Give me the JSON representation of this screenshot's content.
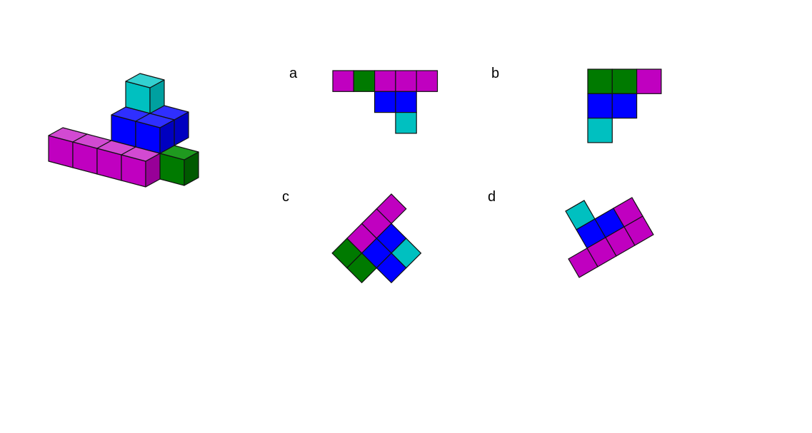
{
  "colors": {
    "magenta": "#c000c0",
    "green": "#007a00",
    "blue": "#0000ff",
    "cyan": "#00c0c0",
    "outline": "#111111",
    "magenta_top": "#d24ad2",
    "magenta_side": "#980098",
    "green_top": "#1f9a1f",
    "green_side": "#005a00",
    "blue_top": "#2f2fff",
    "blue_side": "#0000c0",
    "cyan_top": "#33d0d0",
    "cyan_side": "#00a0a0"
  },
  "options": [
    {
      "label": "a",
      "cells": [
        {
          "col": 0,
          "row": 0,
          "color": "magenta"
        },
        {
          "col": 1,
          "row": 0,
          "color": "green"
        },
        {
          "col": 2,
          "row": 0,
          "color": "magenta"
        },
        {
          "col": 3,
          "row": 0,
          "color": "magenta"
        },
        {
          "col": 4,
          "row": 0,
          "color": "magenta"
        },
        {
          "col": 2,
          "row": 1,
          "color": "blue"
        },
        {
          "col": 3,
          "row": 1,
          "color": "blue"
        },
        {
          "col": 3,
          "row": 2,
          "color": "cyan"
        }
      ]
    },
    {
      "label": "b",
      "cells": [
        {
          "col": 0,
          "row": 0,
          "color": "green"
        },
        {
          "col": 1,
          "row": 0,
          "color": "green"
        },
        {
          "col": 2,
          "row": 0,
          "color": "magenta"
        },
        {
          "col": 0,
          "row": 1,
          "color": "blue"
        },
        {
          "col": 1,
          "row": 1,
          "color": "blue"
        },
        {
          "col": 0,
          "row": 2,
          "color": "cyan"
        }
      ]
    },
    {
      "label": "c",
      "cells": [
        {
          "col": 0,
          "row": 0,
          "color": "magenta"
        },
        {
          "col": 0,
          "row": 1,
          "color": "magenta"
        },
        {
          "col": 0,
          "row": 2,
          "color": "magenta"
        },
        {
          "col": 0,
          "row": 3,
          "color": "green"
        },
        {
          "col": 1,
          "row": 1,
          "color": "blue"
        },
        {
          "col": 1,
          "row": 2,
          "color": "blue"
        },
        {
          "col": 1,
          "row": 3,
          "color": "green"
        },
        {
          "col": 2,
          "row": 1,
          "color": "cyan"
        },
        {
          "col": 2,
          "row": 2,
          "color": "blue"
        }
      ]
    },
    {
      "label": "d",
      "cells": [
        {
          "col": 0,
          "row": 0,
          "color": "cyan"
        },
        {
          "col": 0,
          "row": 1,
          "color": "blue"
        },
        {
          "col": 1,
          "row": 1,
          "color": "blue"
        },
        {
          "col": 0,
          "row": 2,
          "color": "magenta"
        },
        {
          "col": 1,
          "row": 2,
          "color": "magenta"
        },
        {
          "col": 2,
          "row": 2,
          "color": "magenta"
        },
        {
          "col": -1,
          "row": 2,
          "color": "magenta"
        },
        {
          "col": 2,
          "row": 1,
          "color": "magenta"
        }
      ]
    }
  ],
  "model_cubes": [
    {
      "x": 0,
      "y": 0,
      "z": 0,
      "color": "magenta"
    },
    {
      "x": 1,
      "y": 0,
      "z": 0,
      "color": "magenta"
    },
    {
      "x": 2,
      "y": 0,
      "z": 0,
      "color": "magenta"
    },
    {
      "x": 3,
      "y": 0,
      "z": 0,
      "color": "magenta"
    },
    {
      "x": 3,
      "y": 1,
      "z": 0,
      "color": "green"
    },
    {
      "x": 4,
      "y": 1,
      "z": 0,
      "color": "green"
    },
    {
      "x": 2,
      "y": 1,
      "z": 1,
      "color": "blue"
    },
    {
      "x": 3,
      "y": 1,
      "z": 1,
      "color": "blue"
    },
    {
      "x": 3,
      "y": 2,
      "z": 1,
      "color": "blue"
    },
    {
      "x": 2,
      "y": 2,
      "z": 2,
      "color": "cyan"
    }
  ]
}
